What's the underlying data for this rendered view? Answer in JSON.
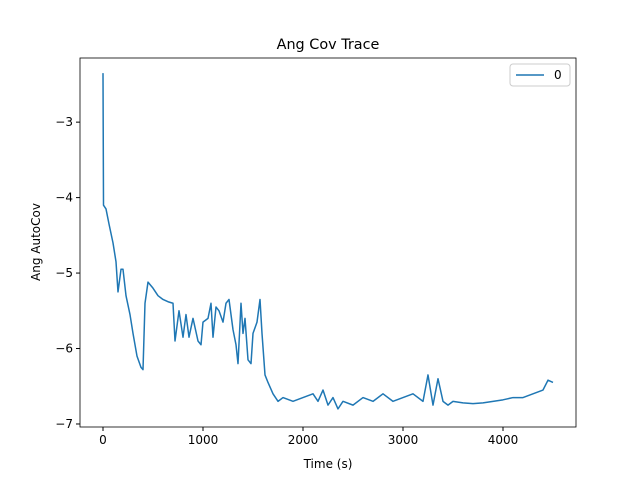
{
  "chart_data": {
    "type": "line",
    "title": "Ang Cov Trace",
    "x_label": "Time (s)",
    "y_label": "Ang AutoCov",
    "legend": "upper right",
    "xlim": [
      -230,
      4730
    ],
    "ylim": [
      -7.04,
      -2.15
    ],
    "xticks": [
      0,
      1000,
      2000,
      3000,
      4000
    ],
    "yticks": [
      {
        "value": -3,
        "label": "−3"
      },
      {
        "value": -4,
        "label": "−4"
      },
      {
        "value": -5,
        "label": "−5"
      },
      {
        "value": -6,
        "label": "−6"
      },
      {
        "value": -7,
        "label": "−7"
      }
    ],
    "x": [
      0,
      5,
      30,
      60,
      100,
      130,
      150,
      180,
      200,
      230,
      270,
      300,
      340,
      380,
      400,
      420,
      450,
      500,
      550,
      600,
      650,
      700,
      720,
      760,
      800,
      830,
      860,
      900,
      950,
      980,
      1000,
      1050,
      1080,
      1100,
      1130,
      1160,
      1200,
      1230,
      1260,
      1300,
      1330,
      1350,
      1380,
      1400,
      1420,
      1450,
      1480,
      1500,
      1540,
      1570,
      1590,
      1620,
      1650,
      1700,
      1750,
      1800,
      1900,
      2000,
      2100,
      2150,
      2200,
      2250,
      2300,
      2350,
      2400,
      2500,
      2600,
      2700,
      2800,
      2900,
      3000,
      3100,
      3200,
      3250,
      3300,
      3350,
      3400,
      3450,
      3500,
      3600,
      3700,
      3800,
      3900,
      4000,
      4100,
      4200,
      4300,
      4400,
      4450,
      4500
    ],
    "series": [
      {
        "name": "0",
        "color": "#1f77b4",
        "values": [
          -2.35,
          -4.1,
          -4.15,
          -4.35,
          -4.6,
          -4.85,
          -5.25,
          -4.95,
          -4.95,
          -5.3,
          -5.55,
          -5.8,
          -6.1,
          -6.25,
          -6.28,
          -5.4,
          -5.12,
          -5.2,
          -5.3,
          -5.35,
          -5.38,
          -5.4,
          -5.9,
          -5.5,
          -5.85,
          -5.55,
          -5.85,
          -5.6,
          -5.9,
          -5.95,
          -5.65,
          -5.6,
          -5.4,
          -5.85,
          -5.45,
          -5.5,
          -5.65,
          -5.4,
          -5.35,
          -5.75,
          -5.95,
          -6.2,
          -5.4,
          -5.8,
          -5.6,
          -6.15,
          -6.2,
          -5.8,
          -5.65,
          -5.35,
          -5.8,
          -6.35,
          -6.45,
          -6.6,
          -6.7,
          -6.65,
          -6.7,
          -6.65,
          -6.6,
          -6.7,
          -6.55,
          -6.75,
          -6.65,
          -6.8,
          -6.7,
          -6.75,
          -6.65,
          -6.7,
          -6.6,
          -6.7,
          -6.65,
          -6.6,
          -6.7,
          -6.35,
          -6.75,
          -6.4,
          -6.7,
          -6.75,
          -6.7,
          -6.72,
          -6.73,
          -6.72,
          -6.7,
          -6.68,
          -6.65,
          -6.65,
          -6.6,
          -6.55,
          -6.42,
          -6.45
        ]
      }
    ]
  }
}
